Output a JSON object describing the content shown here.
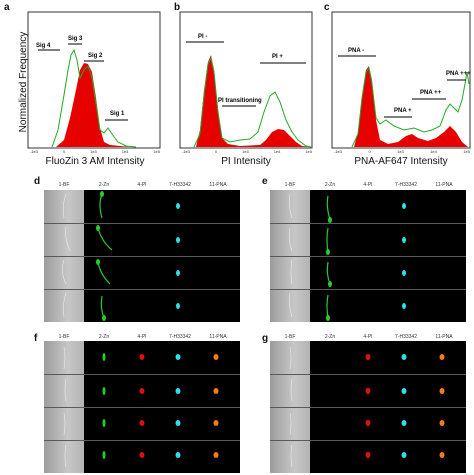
{
  "figure": {
    "ylabel": "Normalized Frequency",
    "panels": {
      "a": {
        "letter": "a",
        "xlabel": "FluoZin 3 AM Intensity",
        "annotations": [
          "Sig 4",
          "Sig 3",
          "Sig 2",
          "Sig 1"
        ],
        "ticks": [
          "-1e3",
          "0",
          "1e3",
          "1e4",
          "1e5"
        ]
      },
      "b": {
        "letter": "b",
        "xlabel": "PI Intensity",
        "annotations": [
          "PI -",
          "PI transitioning",
          "PI +"
        ],
        "ticks": [
          "-1e3",
          "0",
          "1e3",
          "1e4",
          "1e5"
        ]
      },
      "c": {
        "letter": "c",
        "xlabel": "PNA-AF647 Intensity",
        "annotations": [
          "PNA -",
          "PNA +",
          "PNA ++",
          "PNA +++"
        ],
        "ticks": [
          "-1e3",
          "0",
          "1e3",
          "1e4",
          "1e5"
        ]
      }
    },
    "image_grids": {
      "d": {
        "letter": "d",
        "headers": [
          "1-BF",
          "2-Zn",
          "4-PI",
          "7-H33342",
          "11-PNA"
        ]
      },
      "e": {
        "letter": "e",
        "headers": [
          "1-BF",
          "2-Zn",
          "4-PI",
          "7-H33342",
          "11-PNA"
        ]
      },
      "f": {
        "letter": "f",
        "headers": [
          "1-BF",
          "2-Zn",
          "4-PI",
          "7-H33342",
          "11-PNA"
        ]
      },
      "g": {
        "letter": "g",
        "headers": [
          "1-BF",
          "2-Zn",
          "4-PI",
          "7-H33342",
          "11-PNA"
        ]
      }
    },
    "colors": {
      "filled": "#e60000",
      "outline": "#22aa22",
      "bf": "#aaaaaa",
      "zn": "#25d025",
      "pi": "#e01010",
      "h": "#2ee0e8",
      "pna": "#ff7a10"
    }
  }
}
